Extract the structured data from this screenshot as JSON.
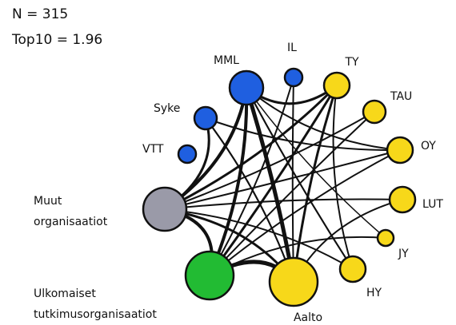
{
  "header": {
    "lines": [
      "N = 315",
      "Top10 = 1.96"
    ]
  },
  "nodes": [
    {
      "lines": [
        "MML"
      ]
    },
    {
      "lines": [
        "IL"
      ]
    },
    {
      "lines": [
        "TY"
      ]
    },
    {
      "lines": [
        "TAU"
      ]
    },
    {
      "lines": [
        "OY"
      ]
    },
    {
      "lines": [
        "LUT"
      ]
    },
    {
      "lines": [
        "JY"
      ]
    },
    {
      "lines": [
        "HY"
      ]
    },
    {
      "lines": [
        "Aalto"
      ]
    },
    {
      "lines": [
        "Ulkomaiset",
        "tutkimusorganisaatiot"
      ]
    },
    {
      "lines": [
        "Muut",
        "organisaatiot"
      ]
    },
    {
      "lines": [
        "Syke"
      ]
    },
    {
      "lines": [
        "VTT"
      ]
    }
  ]
}
